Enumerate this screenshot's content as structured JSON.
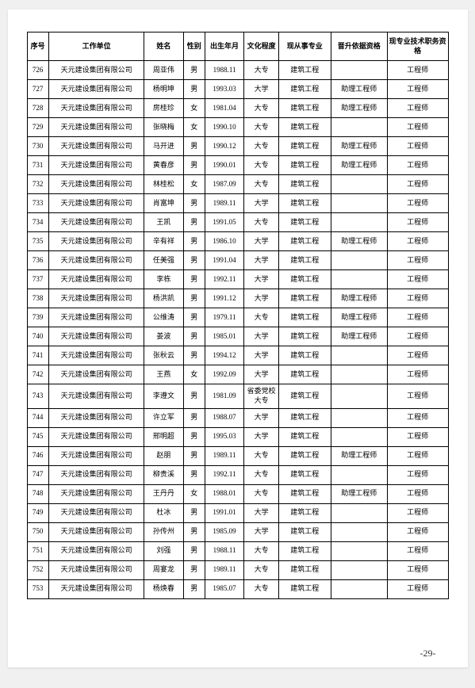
{
  "headers": {
    "seq": "序号",
    "unit": "工作单位",
    "name": "姓名",
    "gender": "性别",
    "birth": "出生年月",
    "edu": "文化程度",
    "prof": "现从事专业",
    "basis": "晋升依据资格",
    "title": "现专业技术职务资格"
  },
  "rows": [
    {
      "seq": "726",
      "unit": "天元建设集团有限公司",
      "name": "周亚伟",
      "gender": "男",
      "birth": "1988.11",
      "edu": "大专",
      "prof": "建筑工程",
      "basis": "",
      "title": "工程师"
    },
    {
      "seq": "727",
      "unit": "天元建设集团有限公司",
      "name": "杨明坤",
      "gender": "男",
      "birth": "1993.03",
      "edu": "大学",
      "prof": "建筑工程",
      "basis": "助理工程师",
      "title": "工程师"
    },
    {
      "seq": "728",
      "unit": "天元建设集团有限公司",
      "name": "房桂珍",
      "gender": "女",
      "birth": "1981.04",
      "edu": "大专",
      "prof": "建筑工程",
      "basis": "助理工程师",
      "title": "工程师"
    },
    {
      "seq": "729",
      "unit": "天元建设集团有限公司",
      "name": "张晓梅",
      "gender": "女",
      "birth": "1990.10",
      "edu": "大专",
      "prof": "建筑工程",
      "basis": "",
      "title": "工程师"
    },
    {
      "seq": "730",
      "unit": "天元建设集团有限公司",
      "name": "马开进",
      "gender": "男",
      "birth": "1990.12",
      "edu": "大专",
      "prof": "建筑工程",
      "basis": "助理工程师",
      "title": "工程师"
    },
    {
      "seq": "731",
      "unit": "天元建设集团有限公司",
      "name": "黄春彦",
      "gender": "男",
      "birth": "1990.01",
      "edu": "大专",
      "prof": "建筑工程",
      "basis": "助理工程师",
      "title": "工程师"
    },
    {
      "seq": "732",
      "unit": "天元建设集团有限公司",
      "name": "林桂松",
      "gender": "女",
      "birth": "1987.09",
      "edu": "大专",
      "prof": "建筑工程",
      "basis": "",
      "title": "工程师"
    },
    {
      "seq": "733",
      "unit": "天元建设集团有限公司",
      "name": "肖富坤",
      "gender": "男",
      "birth": "1989.11",
      "edu": "大学",
      "prof": "建筑工程",
      "basis": "",
      "title": "工程师"
    },
    {
      "seq": "734",
      "unit": "天元建设集团有限公司",
      "name": "王凯",
      "gender": "男",
      "birth": "1991.05",
      "edu": "大专",
      "prof": "建筑工程",
      "basis": "",
      "title": "工程师"
    },
    {
      "seq": "735",
      "unit": "天元建设集团有限公司",
      "name": "辛有祥",
      "gender": "男",
      "birth": "1986.10",
      "edu": "大学",
      "prof": "建筑工程",
      "basis": "助理工程师",
      "title": "工程师"
    },
    {
      "seq": "736",
      "unit": "天元建设集团有限公司",
      "name": "任美强",
      "gender": "男",
      "birth": "1991.04",
      "edu": "大学",
      "prof": "建筑工程",
      "basis": "",
      "title": "工程师"
    },
    {
      "seq": "737",
      "unit": "天元建设集团有限公司",
      "name": "李栋",
      "gender": "男",
      "birth": "1992.11",
      "edu": "大学",
      "prof": "建筑工程",
      "basis": "",
      "title": "工程师"
    },
    {
      "seq": "738",
      "unit": "天元建设集团有限公司",
      "name": "杨洪凯",
      "gender": "男",
      "birth": "1991.12",
      "edu": "大学",
      "prof": "建筑工程",
      "basis": "助理工程师",
      "title": "工程师"
    },
    {
      "seq": "739",
      "unit": "天元建设集团有限公司",
      "name": "公维涛",
      "gender": "男",
      "birth": "1979.11",
      "edu": "大专",
      "prof": "建筑工程",
      "basis": "助理工程师",
      "title": "工程师"
    },
    {
      "seq": "740",
      "unit": "天元建设集团有限公司",
      "name": "姜波",
      "gender": "男",
      "birth": "1985.01",
      "edu": "大学",
      "prof": "建筑工程",
      "basis": "助理工程师",
      "title": "工程师"
    },
    {
      "seq": "741",
      "unit": "天元建设集团有限公司",
      "name": "张秋云",
      "gender": "男",
      "birth": "1994.12",
      "edu": "大学",
      "prof": "建筑工程",
      "basis": "",
      "title": "工程师"
    },
    {
      "seq": "742",
      "unit": "天元建设集团有限公司",
      "name": "王燕",
      "gender": "女",
      "birth": "1992.09",
      "edu": "大学",
      "prof": "建筑工程",
      "basis": "",
      "title": "工程师"
    },
    {
      "seq": "743",
      "unit": "天元建设集团有限公司",
      "name": "李遵文",
      "gender": "男",
      "birth": "1981.09",
      "edu": "省委党校大专",
      "prof": "建筑工程",
      "basis": "",
      "title": "工程师"
    },
    {
      "seq": "744",
      "unit": "天元建设集团有限公司",
      "name": "许立军",
      "gender": "男",
      "birth": "1988.07",
      "edu": "大学",
      "prof": "建筑工程",
      "basis": "",
      "title": "工程师"
    },
    {
      "seq": "745",
      "unit": "天元建设集团有限公司",
      "name": "邢明超",
      "gender": "男",
      "birth": "1995.03",
      "edu": "大学",
      "prof": "建筑工程",
      "basis": "",
      "title": "工程师"
    },
    {
      "seq": "746",
      "unit": "天元建设集团有限公司",
      "name": "赵朋",
      "gender": "男",
      "birth": "1989.11",
      "edu": "大专",
      "prof": "建筑工程",
      "basis": "助理工程师",
      "title": "工程师"
    },
    {
      "seq": "747",
      "unit": "天元建设集团有限公司",
      "name": "柳贵溪",
      "gender": "男",
      "birth": "1992.11",
      "edu": "大专",
      "prof": "建筑工程",
      "basis": "",
      "title": "工程师"
    },
    {
      "seq": "748",
      "unit": "天元建设集团有限公司",
      "name": "王丹丹",
      "gender": "女",
      "birth": "1988.01",
      "edu": "大专",
      "prof": "建筑工程",
      "basis": "助理工程师",
      "title": "工程师"
    },
    {
      "seq": "749",
      "unit": "天元建设集团有限公司",
      "name": "杜冰",
      "gender": "男",
      "birth": "1991.01",
      "edu": "大学",
      "prof": "建筑工程",
      "basis": "",
      "title": "工程师"
    },
    {
      "seq": "750",
      "unit": "天元建设集团有限公司",
      "name": "孙传州",
      "gender": "男",
      "birth": "1985.09",
      "edu": "大学",
      "prof": "建筑工程",
      "basis": "",
      "title": "工程师"
    },
    {
      "seq": "751",
      "unit": "天元建设集团有限公司",
      "name": "刘强",
      "gender": "男",
      "birth": "1988.11",
      "edu": "大专",
      "prof": "建筑工程",
      "basis": "",
      "title": "工程师"
    },
    {
      "seq": "752",
      "unit": "天元建设集团有限公司",
      "name": "周宴龙",
      "gender": "男",
      "birth": "1989.11",
      "edu": "大专",
      "prof": "建筑工程",
      "basis": "",
      "title": "工程师"
    },
    {
      "seq": "753",
      "unit": "天元建设集团有限公司",
      "name": "杨焕春",
      "gender": "男",
      "birth": "1985.07",
      "edu": "大专",
      "prof": "建筑工程",
      "basis": "",
      "title": "工程师"
    }
  ],
  "pageNumber": "-29-"
}
